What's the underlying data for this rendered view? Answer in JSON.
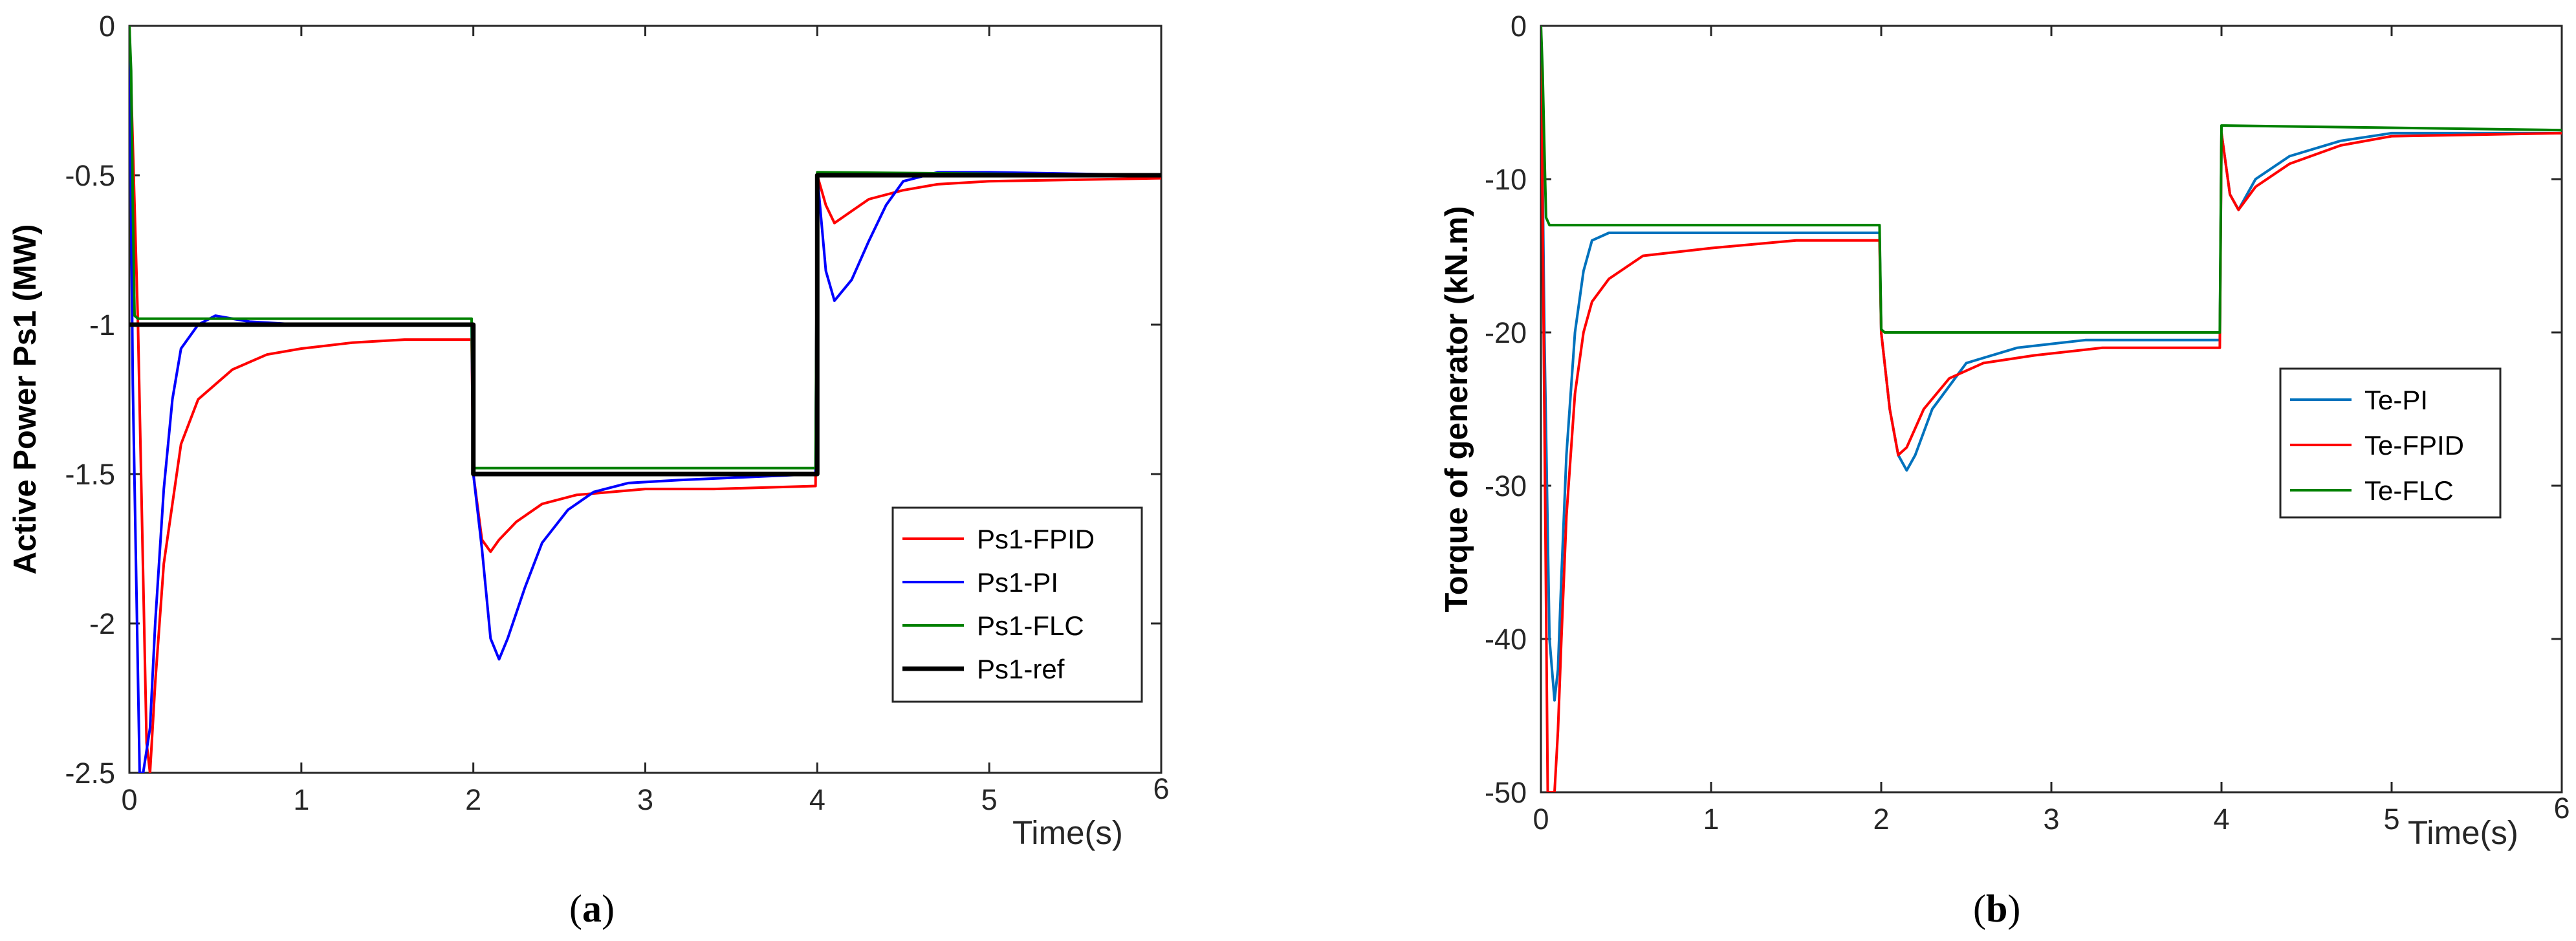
{
  "chart_data": [
    {
      "type": "line",
      "panel_label": "a",
      "xlabel": "Time(s)",
      "ylabel": "Active Power Ps1 (MW)",
      "xlim": [
        0,
        6
      ],
      "ylim": [
        -2.5,
        0
      ],
      "xticks": [
        "0",
        "1",
        "2",
        "3",
        "4",
        "5",
        "6"
      ],
      "yticks": [
        "0",
        "-0.5",
        "-1",
        "-1.5",
        "-2",
        "-2.5"
      ],
      "ytick_values": [
        0,
        -0.5,
        -1,
        -1.5,
        -2,
        -2.5
      ],
      "legend_position": "lower-right",
      "series": [
        {
          "name": "Ps1-FPID",
          "color": "#ff0000",
          "x": [
            0,
            0.05,
            0.1,
            0.12,
            0.15,
            0.2,
            0.3,
            0.4,
            0.6,
            0.8,
            1.0,
            1.3,
            1.6,
            1.99,
            2.0,
            2.05,
            2.1,
            2.15,
            2.25,
            2.4,
            2.6,
            2.8,
            3.0,
            3.4,
            3.99,
            4.0,
            4.05,
            4.1,
            4.2,
            4.3,
            4.5,
            4.7,
            5.0,
            6.0
          ],
          "y": [
            0,
            -1.0,
            -2.4,
            -2.5,
            -2.2,
            -1.8,
            -1.4,
            -1.25,
            -1.15,
            -1.1,
            -1.08,
            -1.06,
            -1.05,
            -1.05,
            -1.5,
            -1.72,
            -1.76,
            -1.72,
            -1.66,
            -1.6,
            -1.57,
            -1.56,
            -1.55,
            -1.55,
            -1.54,
            -0.5,
            -0.6,
            -0.66,
            -0.62,
            -0.58,
            -0.55,
            -0.53,
            -0.52,
            -0.51
          ]
        },
        {
          "name": "Ps1-PI",
          "color": "#0000ff",
          "x": [
            0,
            0.02,
            0.06,
            0.08,
            0.12,
            0.15,
            0.2,
            0.25,
            0.3,
            0.4,
            0.5,
            0.7,
            1.0,
            1.5,
            1.99,
            2.0,
            2.05,
            2.1,
            2.15,
            2.2,
            2.3,
            2.4,
            2.55,
            2.7,
            2.9,
            3.2,
            3.6,
            3.99,
            4.0,
            4.05,
            4.1,
            4.2,
            4.3,
            4.4,
            4.5,
            4.7,
            5.0,
            6.0
          ],
          "y": [
            0,
            -1.2,
            -2.5,
            -2.5,
            -2.35,
            -2.0,
            -1.55,
            -1.25,
            -1.08,
            -1.0,
            -0.97,
            -0.99,
            -1.0,
            -1.0,
            -1.0,
            -1.5,
            -1.75,
            -2.05,
            -2.12,
            -2.05,
            -1.88,
            -1.73,
            -1.62,
            -1.56,
            -1.53,
            -1.52,
            -1.51,
            -1.5,
            -0.5,
            -0.82,
            -0.92,
            -0.85,
            -0.72,
            -0.6,
            -0.52,
            -0.49,
            -0.49,
            -0.5
          ]
        },
        {
          "name": "Ps1-FLC",
          "color": "#008000",
          "x": [
            0,
            0.01,
            0.02,
            0.03,
            0.05,
            1.99,
            2.0,
            2.02,
            3.99,
            4.0,
            4.02,
            6.0
          ],
          "y": [
            0,
            -0.15,
            -0.6,
            -0.97,
            -0.98,
            -0.98,
            -1.48,
            -1.48,
            -1.48,
            -0.49,
            -0.49,
            -0.5
          ]
        },
        {
          "name": "Ps1-ref",
          "color": "#000000",
          "x": [
            0,
            0.03,
            2.0,
            2.0,
            4.0,
            4.0,
            6.0
          ],
          "y": [
            -1,
            -1,
            -1,
            -1.5,
            -1.5,
            -0.5,
            -0.5
          ]
        }
      ]
    },
    {
      "type": "line",
      "panel_label": "b",
      "xlabel": "Time(s)",
      "ylabel": "Torque of generator (kN.m)",
      "xlim": [
        0,
        6
      ],
      "ylim": [
        -50,
        0
      ],
      "xticks": [
        "0",
        "1",
        "2",
        "3",
        "4",
        "5",
        "6"
      ],
      "yticks": [
        "0",
        "-10",
        "-20",
        "-30",
        "-40",
        "-50"
      ],
      "ytick_values": [
        0,
        -10,
        -20,
        -30,
        -40,
        -50
      ],
      "legend_position": "upper-right",
      "series": [
        {
          "name": "Te-PI",
          "color": "#0072bd",
          "x": [
            0,
            0.02,
            0.05,
            0.08,
            0.1,
            0.12,
            0.15,
            0.2,
            0.25,
            0.3,
            0.4,
            0.6,
            1.0,
            1.99,
            2.0,
            2.05,
            2.1,
            2.15,
            2.2,
            2.3,
            2.5,
            2.8,
            3.2,
            3.99,
            4.0,
            4.05,
            4.1,
            4.2,
            4.4,
            4.7,
            5.0,
            6.0
          ],
          "y": [
            0,
            -20,
            -40,
            -44,
            -42,
            -36,
            -28,
            -20,
            -16,
            -14,
            -13.5,
            -13.5,
            -13.5,
            -13.5,
            -20,
            -25,
            -28,
            -29,
            -28,
            -25,
            -22,
            -21,
            -20.5,
            -20.5,
            -7,
            -11,
            -12,
            -10,
            -8.5,
            -7.5,
            -7,
            -7
          ]
        },
        {
          "name": "Te-FPID",
          "color": "#ff0000",
          "x": [
            0,
            0.02,
            0.04,
            0.06,
            0.08,
            0.1,
            0.12,
            0.15,
            0.2,
            0.25,
            0.3,
            0.4,
            0.6,
            1.0,
            1.5,
            1.99,
            2.0,
            2.05,
            2.1,
            2.15,
            2.25,
            2.4,
            2.6,
            2.9,
            3.3,
            3.99,
            4.0,
            4.05,
            4.1,
            4.2,
            4.4,
            4.7,
            5.0,
            6.0
          ],
          "y": [
            0,
            -25,
            -50,
            -50,
            -50,
            -46,
            -40,
            -32,
            -24,
            -20,
            -18,
            -16.5,
            -15,
            -14.5,
            -14,
            -14,
            -20,
            -25,
            -28,
            -27.5,
            -25,
            -23,
            -22,
            -21.5,
            -21,
            -21,
            -7,
            -11,
            -12,
            -10.5,
            -9,
            -7.8,
            -7.2,
            -7
          ]
        },
        {
          "name": "Te-FLC",
          "color": "#008000",
          "x": [
            0,
            0.01,
            0.02,
            0.03,
            0.05,
            1.99,
            2.0,
            2.02,
            3.99,
            4.0,
            4.02,
            6.0
          ],
          "y": [
            0,
            -3,
            -8,
            -12.5,
            -13,
            -13,
            -19.8,
            -20,
            -20,
            -6.5,
            -6.5,
            -6.8
          ]
        }
      ]
    }
  ]
}
